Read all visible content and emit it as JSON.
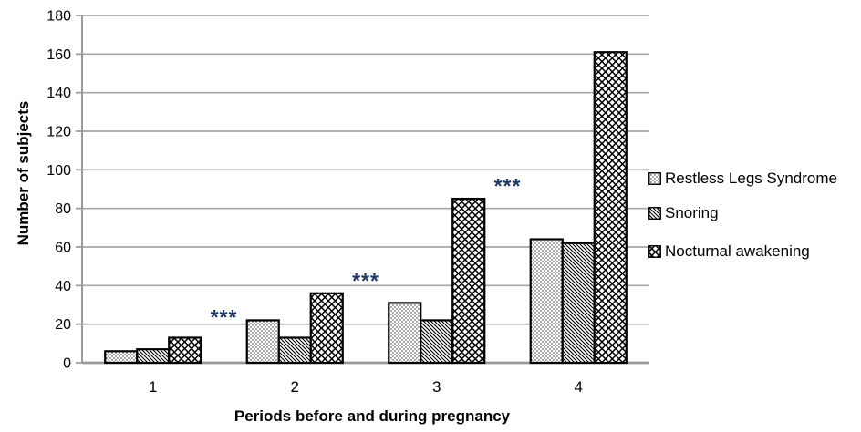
{
  "chart_data": {
    "type": "bar",
    "title": "",
    "xlabel": "Periods before and during pregnancy",
    "ylabel": "Number of subjects",
    "categories": [
      "1",
      "2",
      "3",
      "4"
    ],
    "series": [
      {
        "name": "Restless Legs Syndrome",
        "pattern": "dots",
        "values": [
          6,
          22,
          31,
          64
        ]
      },
      {
        "name": "Snoring",
        "pattern": "diagonal-lines",
        "values": [
          7,
          13,
          22,
          62
        ]
      },
      {
        "name": "Nocturnal awakening",
        "pattern": "crosshatch",
        "values": [
          13,
          36,
          85,
          161
        ]
      }
    ],
    "ylim": [
      0,
      180
    ],
    "ytick_step": 20,
    "yticks": [
      0,
      20,
      40,
      60,
      80,
      100,
      120,
      140,
      160,
      180
    ],
    "grid": true,
    "legend_position": "right",
    "annotations": [
      {
        "text": "***",
        "between": [
          "1",
          "2"
        ],
        "y": 25
      },
      {
        "text": "***",
        "between": [
          "2",
          "3"
        ],
        "y": 44
      },
      {
        "text": "***",
        "between": [
          "3",
          "4"
        ],
        "y": 93
      }
    ],
    "colors": {
      "bar_fill": "#ffffff",
      "bar_stroke": "#000000",
      "gridline": "#a6a6a6",
      "axis": "#9a9a9a",
      "text": "#000000",
      "annotation": "#1f3864"
    }
  }
}
